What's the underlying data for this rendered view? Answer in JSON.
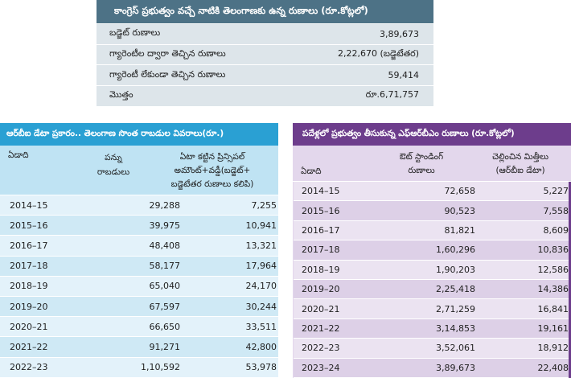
{
  "debt_summary": {
    "title": "కాంగ్రెస్‌ ప్రభుత్వం వచ్చే నాటికి తెలంగాణకు ఉన్న రుణాలు (రూ.కోట్లలో)",
    "rows": [
      {
        "label": "బడ్జెట్‌ రుణాలు",
        "value": "3,89,673"
      },
      {
        "label": "గ్యారెంటీల ద్వారా తెచ్చిన రుణాలు",
        "value": "2,22,670 (బడ్జెటేతర)"
      },
      {
        "label": "గ్యారెంటీ లేకుండా తెచ్చిన రుణాలు",
        "value": "59,414"
      },
      {
        "label": "మొత్తం",
        "value": "రూ.6,71,757"
      }
    ]
  },
  "rbi_table": {
    "title": "ఆర్‌బీఐ డేటా ప్రకారం.. తెలంగాణ సొంత రాబడుల వివరాలు(రూ.)",
    "headers": {
      "year": "ఏడాది",
      "tax_line1": "పన్ను",
      "tax_line2": "రాబడులు",
      "repay_line1": "ఏటా కట్టిన ప్రిన్సిపల్‌",
      "repay_line2": "అమౌంట్‌+వడ్డీ(బడ్జెట్‌+",
      "repay_line3": "బడ్జెటేతర రుణాలు కలిపి)"
    },
    "rows": [
      {
        "year": "2014–15",
        "tax": "29,288",
        "repay": "7,255"
      },
      {
        "year": "2015–16",
        "tax": "39,975",
        "repay": "10,941"
      },
      {
        "year": "2016–17",
        "tax": "48,408",
        "repay": "13,321"
      },
      {
        "year": "2017–18",
        "tax": "58,177",
        "repay": "17,964"
      },
      {
        "year": "2018–19",
        "tax": "65,040",
        "repay": "24,170"
      },
      {
        "year": "2019–20",
        "tax": "67,597",
        "repay": "30,244"
      },
      {
        "year": "2020–21",
        "tax": "66,650",
        "repay": "33,511"
      },
      {
        "year": "2021–22",
        "tax": "91,271",
        "repay": "42,800"
      },
      {
        "year": "2022–23",
        "tax": "1,10,592",
        "repay": "53,978"
      }
    ]
  },
  "frbm_table": {
    "title": "పదేళ్లలో ప్రభుత్వం తీసుకున్న ఎఫ్‌ఆర్‌బీఎం రుణాలు (రూ.కోట్లలో)",
    "headers": {
      "year": "ఏడాది",
      "outstanding_line1": "ఔట్‌ స్టాండింగ్‌",
      "outstanding_line2": "రుణాలు",
      "paid_line1": "చెల్లించిన మిత్తీలు",
      "paid_line2": "(ఆర్‌బీఐ డేటా)"
    },
    "rows": [
      {
        "year": "2014–15",
        "outstanding": "72,658",
        "interest": "5,227"
      },
      {
        "year": "2015–16",
        "outstanding": "90,523",
        "interest": "7,558"
      },
      {
        "year": "2016–17",
        "outstanding": "81,821",
        "interest": "8,609"
      },
      {
        "year": "2017–18",
        "outstanding": "1,60,296",
        "interest": "10,836"
      },
      {
        "year": "2018–19",
        "outstanding": "1,90,203",
        "interest": "12,586"
      },
      {
        "year": "2019–20",
        "outstanding": "2,25,418",
        "interest": "14,386"
      },
      {
        "year": "2020–21",
        "outstanding": "2,71,259",
        "interest": "16,841"
      },
      {
        "year": "2021–22",
        "outstanding": "3,14,853",
        "interest": "19,161"
      },
      {
        "year": "2022–23",
        "outstanding": "3,52,061",
        "interest": "18,912"
      },
      {
        "year": "2023–24",
        "outstanding": "3,89,673",
        "interest": "22,408"
      }
    ]
  }
}
